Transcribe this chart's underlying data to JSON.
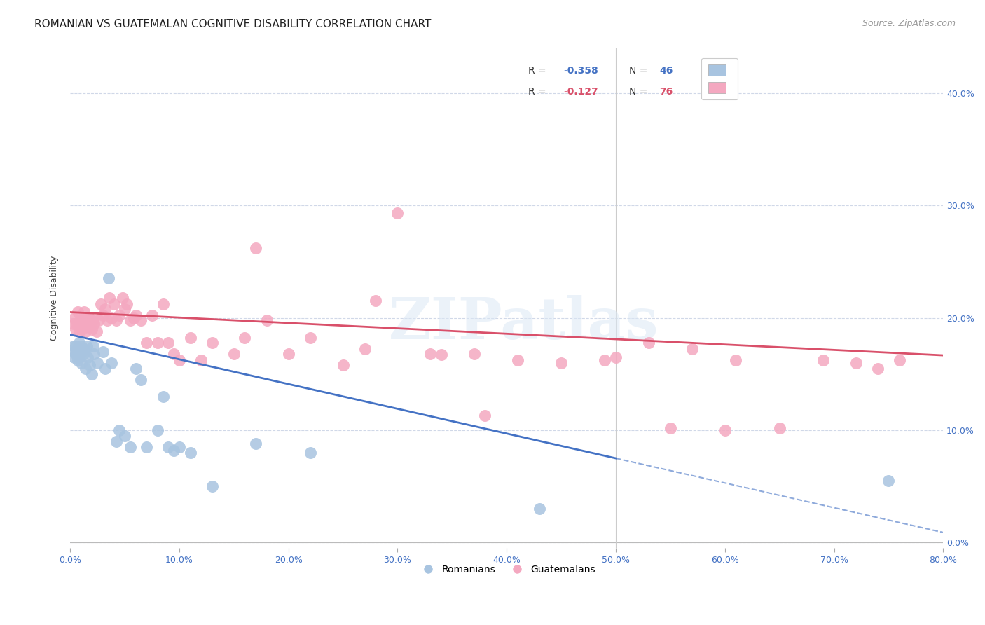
{
  "title": "ROMANIAN VS GUATEMALAN COGNITIVE DISABILITY CORRELATION CHART",
  "source": "Source: ZipAtlas.com",
  "ylabel": "Cognitive Disability",
  "xlim": [
    0.0,
    0.8
  ],
  "ylim": [
    -0.005,
    0.44
  ],
  "yticks": [
    0.0,
    0.1,
    0.2,
    0.3,
    0.4
  ],
  "xticks": [
    0.0,
    0.1,
    0.2,
    0.3,
    0.4,
    0.5,
    0.6,
    0.7,
    0.8
  ],
  "romanian_color": "#a8c4e0",
  "guatemalan_color": "#f4a8c0",
  "romanian_line_color": "#4472c4",
  "guatemalan_line_color": "#d9506a",
  "watermark_text": "ZIPatlas",
  "background_color": "#ffffff",
  "grid_color": "#d0d8e8",
  "romanian_N": 46,
  "guatemalan_N": 76,
  "legend_r_romanian": "-0.358",
  "legend_n_romanian": "46",
  "legend_r_guatemalan": "-0.127",
  "legend_n_guatemalan": "76",
  "romanian_x": [
    0.003,
    0.004,
    0.004,
    0.005,
    0.005,
    0.006,
    0.007,
    0.007,
    0.008,
    0.008,
    0.009,
    0.01,
    0.01,
    0.011,
    0.012,
    0.013,
    0.014,
    0.015,
    0.016,
    0.018,
    0.02,
    0.021,
    0.022,
    0.025,
    0.03,
    0.032,
    0.035,
    0.038,
    0.042,
    0.045,
    0.05,
    0.055,
    0.06,
    0.065,
    0.07,
    0.08,
    0.085,
    0.09,
    0.095,
    0.1,
    0.11,
    0.13,
    0.17,
    0.22,
    0.43,
    0.75
  ],
  "romanian_y": [
    0.175,
    0.17,
    0.165,
    0.175,
    0.168,
    0.17,
    0.162,
    0.172,
    0.165,
    0.178,
    0.168,
    0.175,
    0.16,
    0.17,
    0.168,
    0.172,
    0.155,
    0.175,
    0.165,
    0.158,
    0.15,
    0.175,
    0.168,
    0.16,
    0.17,
    0.155,
    0.235,
    0.16,
    0.09,
    0.1,
    0.095,
    0.085,
    0.155,
    0.145,
    0.085,
    0.1,
    0.13,
    0.085,
    0.082,
    0.085,
    0.08,
    0.05,
    0.088,
    0.08,
    0.03,
    0.055
  ],
  "guatemalan_x": [
    0.003,
    0.004,
    0.005,
    0.006,
    0.007,
    0.008,
    0.009,
    0.01,
    0.011,
    0.012,
    0.013,
    0.014,
    0.015,
    0.016,
    0.017,
    0.018,
    0.019,
    0.02,
    0.021,
    0.022,
    0.024,
    0.026,
    0.028,
    0.03,
    0.032,
    0.034,
    0.036,
    0.038,
    0.04,
    0.042,
    0.045,
    0.048,
    0.05,
    0.052,
    0.055,
    0.058,
    0.06,
    0.065,
    0.07,
    0.075,
    0.08,
    0.085,
    0.09,
    0.095,
    0.1,
    0.11,
    0.12,
    0.13,
    0.15,
    0.16,
    0.17,
    0.18,
    0.2,
    0.22,
    0.25,
    0.27,
    0.3,
    0.33,
    0.37,
    0.41,
    0.45,
    0.49,
    0.53,
    0.57,
    0.61,
    0.65,
    0.69,
    0.72,
    0.74,
    0.76,
    0.28,
    0.34,
    0.38,
    0.6,
    0.55,
    0.5
  ],
  "guatemalan_y": [
    0.195,
    0.2,
    0.19,
    0.195,
    0.205,
    0.188,
    0.198,
    0.195,
    0.19,
    0.198,
    0.205,
    0.188,
    0.2,
    0.195,
    0.192,
    0.2,
    0.198,
    0.19,
    0.198,
    0.195,
    0.188,
    0.198,
    0.212,
    0.202,
    0.208,
    0.198,
    0.218,
    0.2,
    0.212,
    0.198,
    0.202,
    0.218,
    0.208,
    0.212,
    0.198,
    0.2,
    0.202,
    0.198,
    0.178,
    0.202,
    0.178,
    0.212,
    0.178,
    0.168,
    0.162,
    0.182,
    0.162,
    0.178,
    0.168,
    0.182,
    0.262,
    0.198,
    0.168,
    0.182,
    0.158,
    0.172,
    0.293,
    0.168,
    0.168,
    0.162,
    0.16,
    0.162,
    0.178,
    0.172,
    0.162,
    0.102,
    0.162,
    0.16,
    0.155,
    0.162,
    0.215,
    0.167,
    0.113,
    0.1,
    0.102,
    0.165
  ],
  "title_fontsize": 11,
  "ylabel_fontsize": 9,
  "tick_fontsize": 9,
  "source_fontsize": 9,
  "legend_fontsize": 10
}
